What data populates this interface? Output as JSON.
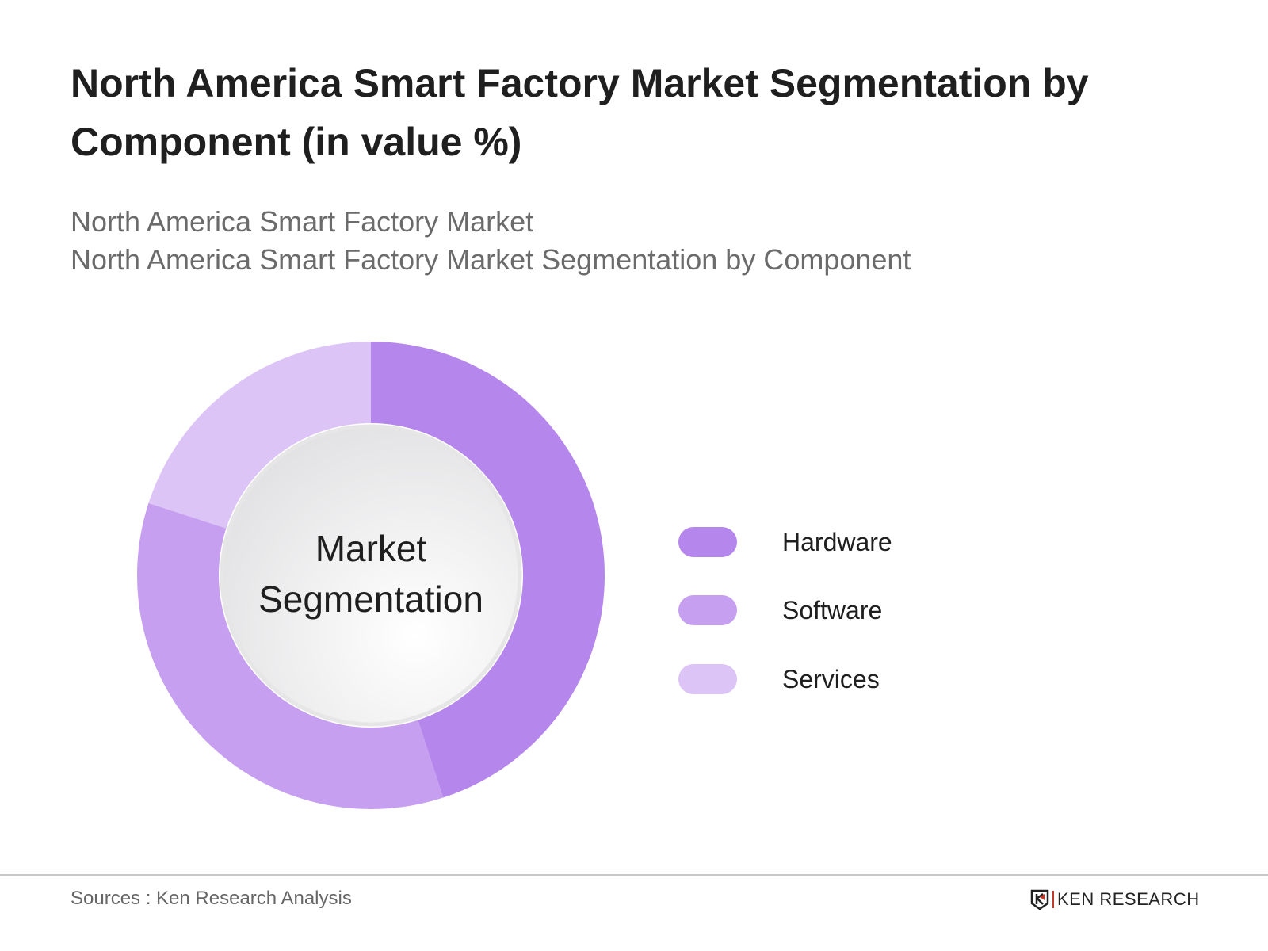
{
  "title": "North America Smart Factory Market Segmentation by Component (in value %)",
  "subtitles": [
    "North America Smart Factory Market",
    "North America Smart Factory Market Segmentation by Component"
  ],
  "chart_data": {
    "type": "pie",
    "variant": "donut",
    "center_label": "Market Segmentation",
    "categories": [
      "Hardware",
      "Software",
      "Services"
    ],
    "values": [
      45,
      35,
      20
    ],
    "colors": [
      "#b586ec",
      "#c69ff0",
      "#dcc4f6"
    ],
    "legend_position": "right"
  },
  "footer": {
    "source": "Sources : Ken Research Analysis",
    "logo_text": "KEN RESEARCH"
  }
}
